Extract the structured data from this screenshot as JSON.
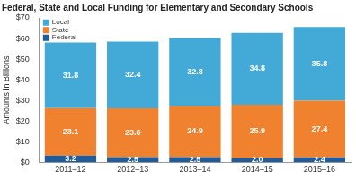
{
  "chart_data": {
    "type": "bar",
    "title": "Federal, State and Local Funding for Elementary and Secondary Schools",
    "y_label": "Amounts in Billions",
    "categories": [
      "2011–12",
      "2012–13",
      "2013–14",
      "2014–15",
      "2015–16"
    ],
    "series": [
      {
        "name": "Federal",
        "color": "#1f5c99",
        "values": [
          3.2,
          2.5,
          2.5,
          2.0,
          2.4
        ],
        "value_labels": [
          "3.2",
          "2.5",
          "2.5",
          "2.0",
          "2.4"
        ]
      },
      {
        "name": "State",
        "color": "#f0812e",
        "values": [
          23.1,
          23.6,
          24.9,
          25.9,
          27.4
        ]
      },
      {
        "name": "Local",
        "color": "#43a9d6",
        "values": [
          31.8,
          32.4,
          32.8,
          34.8,
          35.8
        ]
      }
    ],
    "stacked": true,
    "data_labels": true,
    "legend": "top-left",
    "grid": false,
    "ylim": [
      0,
      70
    ],
    "yticks": [
      {
        "value": 0,
        "label": "$0"
      },
      {
        "value": 10,
        "label": "$10"
      },
      {
        "value": 20,
        "label": "$20"
      },
      {
        "value": 30,
        "label": "$30"
      },
      {
        "value": 40,
        "label": "$40"
      },
      {
        "value": 50,
        "label": "$50"
      },
      {
        "value": 60,
        "label": "$60"
      },
      {
        "value": 70,
        "label": "$70"
      }
    ]
  }
}
